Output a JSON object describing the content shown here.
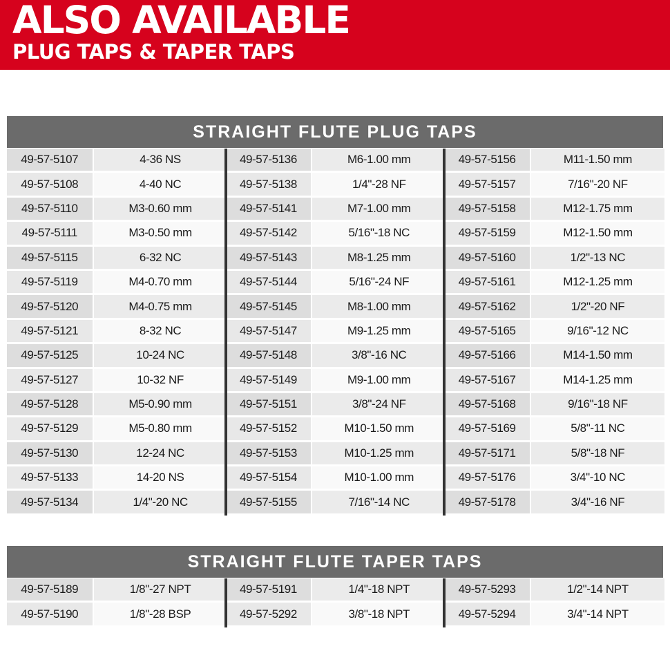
{
  "banner": {
    "title": "ALSO AVAILABLE",
    "subtitle": "PLUG TAPS & TAPER TAPS",
    "bg_color": "#d6021d",
    "text_color": "#ffffff"
  },
  "colors": {
    "table_header_bg": "#6b6b6b",
    "table_header_text": "#ffffff",
    "column_divider": "#333333",
    "part_cell_bg": "#dddddd",
    "size_cell_bg": "#f9f9f9"
  },
  "tables": [
    {
      "title": "STRAIGHT FLUTE PLUG TAPS",
      "columns": [
        "part_number",
        "size",
        "part_number",
        "size",
        "part_number",
        "size"
      ],
      "rows": [
        [
          "49-57-5107",
          "4-36 NS",
          "49-57-5136",
          "M6-1.00 mm",
          "49-57-5156",
          "M11-1.50 mm"
        ],
        [
          "49-57-5108",
          "4-40 NC",
          "49-57-5138",
          "1/4\"-28 NF",
          "49-57-5157",
          "7/16\"-20 NF"
        ],
        [
          "49-57-5110",
          "M3-0.60 mm",
          "49-57-5141",
          "M7-1.00 mm",
          "49-57-5158",
          "M12-1.75 mm"
        ],
        [
          "49-57-5111",
          "M3-0.50 mm",
          "49-57-5142",
          "5/16\"-18 NC",
          "49-57-5159",
          "M12-1.50 mm"
        ],
        [
          "49-57-5115",
          "6-32 NC",
          "49-57-5143",
          "M8-1.25 mm",
          "49-57-5160",
          "1/2\"-13 NC"
        ],
        [
          "49-57-5119",
          "M4-0.70 mm",
          "49-57-5144",
          "5/16\"-24 NF",
          "49-57-5161",
          "M12-1.25 mm"
        ],
        [
          "49-57-5120",
          "M4-0.75 mm",
          "49-57-5145",
          "M8-1.00 mm",
          "49-57-5162",
          "1/2\"-20 NF"
        ],
        [
          "49-57-5121",
          "8-32 NC",
          "49-57-5147",
          "M9-1.25 mm",
          "49-57-5165",
          "9/16\"-12 NC"
        ],
        [
          "49-57-5125",
          "10-24 NC",
          "49-57-5148",
          "3/8\"-16 NC",
          "49-57-5166",
          "M14-1.50 mm"
        ],
        [
          "49-57-5127",
          "10-32 NF",
          "49-57-5149",
          "M9-1.00 mm",
          "49-57-5167",
          "M14-1.25 mm"
        ],
        [
          "49-57-5128",
          "M5-0.90 mm",
          "49-57-5151",
          "3/8\"-24 NF",
          "49-57-5168",
          "9/16\"-18 NF"
        ],
        [
          "49-57-5129",
          "M5-0.80 mm",
          "49-57-5152",
          "M10-1.50 mm",
          "49-57-5169",
          "5/8\"-11 NC"
        ],
        [
          "49-57-5130",
          "12-24 NC",
          "49-57-5153",
          "M10-1.25 mm",
          "49-57-5171",
          "5/8\"-18 NF"
        ],
        [
          "49-57-5133",
          "14-20 NS",
          "49-57-5154",
          "M10-1.00 mm",
          "49-57-5176",
          "3/4\"-10 NC"
        ],
        [
          "49-57-5134",
          "1/4\"-20 NC",
          "49-57-5155",
          "7/16\"-14 NC",
          "49-57-5178",
          "3/4\"-16 NF"
        ]
      ]
    },
    {
      "title": "STRAIGHT FLUTE TAPER TAPS",
      "columns": [
        "part_number",
        "size",
        "part_number",
        "size",
        "part_number",
        "size"
      ],
      "rows": [
        [
          "49-57-5189",
          "1/8\"-27 NPT",
          "49-57-5191",
          "1/4\"-18 NPT",
          "49-57-5293",
          "1/2\"-14 NPT"
        ],
        [
          "49-57-5190",
          "1/8\"-28 BSP",
          "49-57-5292",
          "3/8\"-18 NPT",
          "49-57-5294",
          "3/4\"-14 NPT"
        ]
      ]
    }
  ]
}
